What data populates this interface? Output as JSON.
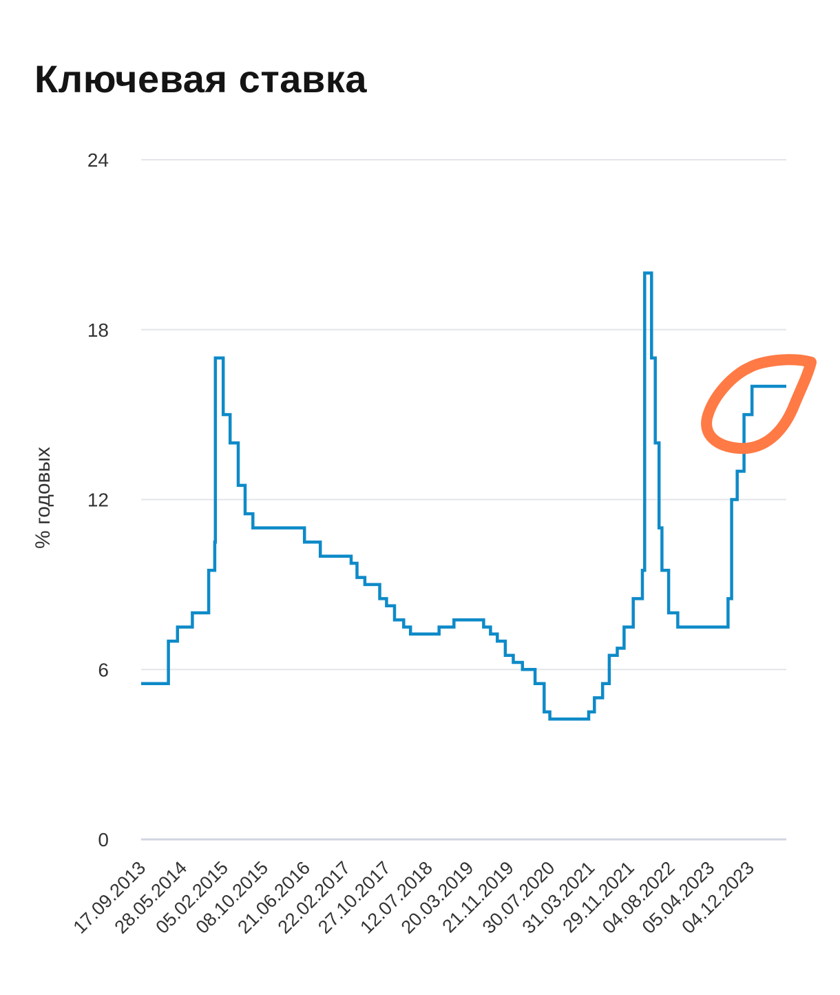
{
  "chart_data": {
    "type": "line",
    "step": true,
    "title": "Ключевая ставка",
    "ylabel": "% годовых",
    "xlabel": "",
    "ylim": [
      0,
      24
    ],
    "yticks": [
      0,
      6,
      12,
      18,
      24
    ],
    "grid": true,
    "x_tick_labels": [
      "17.09.2013",
      "28.05.2014",
      "05.02.2015",
      "08.10.2015",
      "21.06.2016",
      "22.02.2017",
      "27.10.2017",
      "12.07.2018",
      "20.03.2019",
      "21.11.2019",
      "30.07.2020",
      "31.03.2021",
      "29.11.2021",
      "04.08.2022",
      "05.04.2023",
      "04.12.2023"
    ],
    "series": [
      {
        "color": "#0e8ac8",
        "points": [
          [
            "2013-09-17",
            5.5
          ],
          [
            "2014-03-03",
            7
          ],
          [
            "2014-04-28",
            7.5
          ],
          [
            "2014-07-28",
            8
          ],
          [
            "2014-11-05",
            9.5
          ],
          [
            "2014-12-12",
            10.5
          ],
          [
            "2014-12-16",
            17
          ],
          [
            "2015-02-02",
            15
          ],
          [
            "2015-03-16",
            14
          ],
          [
            "2015-05-05",
            12.5
          ],
          [
            "2015-06-16",
            11.5
          ],
          [
            "2015-08-03",
            11
          ],
          [
            "2016-06-14",
            10.5
          ],
          [
            "2016-09-19",
            10
          ],
          [
            "2017-03-27",
            9.75
          ],
          [
            "2017-05-02",
            9.25
          ],
          [
            "2017-06-19",
            9
          ],
          [
            "2017-09-18",
            8.5
          ],
          [
            "2017-10-30",
            8.25
          ],
          [
            "2017-12-18",
            7.75
          ],
          [
            "2018-02-12",
            7.5
          ],
          [
            "2018-03-26",
            7.25
          ],
          [
            "2018-09-17",
            7.5
          ],
          [
            "2018-12-17",
            7.75
          ],
          [
            "2019-06-17",
            7.5
          ],
          [
            "2019-07-29",
            7.25
          ],
          [
            "2019-09-09",
            7
          ],
          [
            "2019-10-28",
            6.5
          ],
          [
            "2019-12-16",
            6.25
          ],
          [
            "2020-02-10",
            6
          ],
          [
            "2020-04-27",
            5.5
          ],
          [
            "2020-06-22",
            4.5
          ],
          [
            "2020-07-27",
            4.25
          ],
          [
            "2021-03-22",
            4.5
          ],
          [
            "2021-04-26",
            5
          ],
          [
            "2021-06-15",
            5.5
          ],
          [
            "2021-07-26",
            6.5
          ],
          [
            "2021-09-13",
            6.75
          ],
          [
            "2021-10-25",
            7.5
          ],
          [
            "2021-12-20",
            8.5
          ],
          [
            "2022-02-14",
            9.5
          ],
          [
            "2022-02-28",
            20
          ],
          [
            "2022-04-11",
            17
          ],
          [
            "2022-05-04",
            14
          ],
          [
            "2022-05-27",
            11
          ],
          [
            "2022-06-14",
            9.5
          ],
          [
            "2022-07-25",
            8
          ],
          [
            "2022-09-19",
            7.5
          ],
          [
            "2023-07-24",
            8.5
          ],
          [
            "2023-08-15",
            12
          ],
          [
            "2023-09-18",
            13
          ],
          [
            "2023-10-30",
            15
          ],
          [
            "2023-12-18",
            16
          ],
          [
            "2024-07-15",
            16
          ]
        ]
      }
    ],
    "annotation": {
      "type": "freehand-loop",
      "color": "#ff7a45",
      "around": "end-of-series"
    }
  }
}
